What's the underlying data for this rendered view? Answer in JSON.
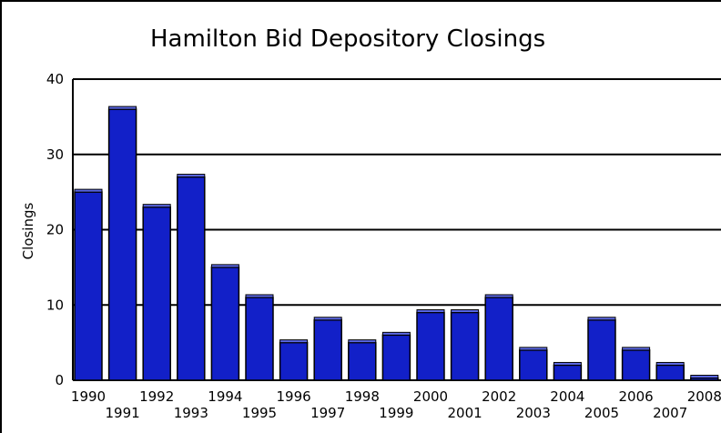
{
  "chart_data": {
    "type": "bar",
    "title": "Hamilton Bid Depository Closings",
    "xlabel": "",
    "ylabel": "Closings",
    "ylim": [
      0,
      40
    ],
    "yticks": [
      0,
      10,
      20,
      30,
      40
    ],
    "grid": true,
    "legend": "none",
    "bar_color": "#1220c8",
    "bar_top_color": "#5b68e6",
    "categories": [
      "1990",
      "1991",
      "1992",
      "1993",
      "1994",
      "1995",
      "1996",
      "1997",
      "1998",
      "1999",
      "2000",
      "2001",
      "2002",
      "2003",
      "2004",
      "2005",
      "2006",
      "2007",
      "2008"
    ],
    "values": [
      25,
      36,
      23,
      27,
      15,
      11,
      5,
      8,
      5,
      6,
      9,
      9,
      11,
      4,
      2,
      8,
      4,
      2,
      0.3
    ]
  }
}
